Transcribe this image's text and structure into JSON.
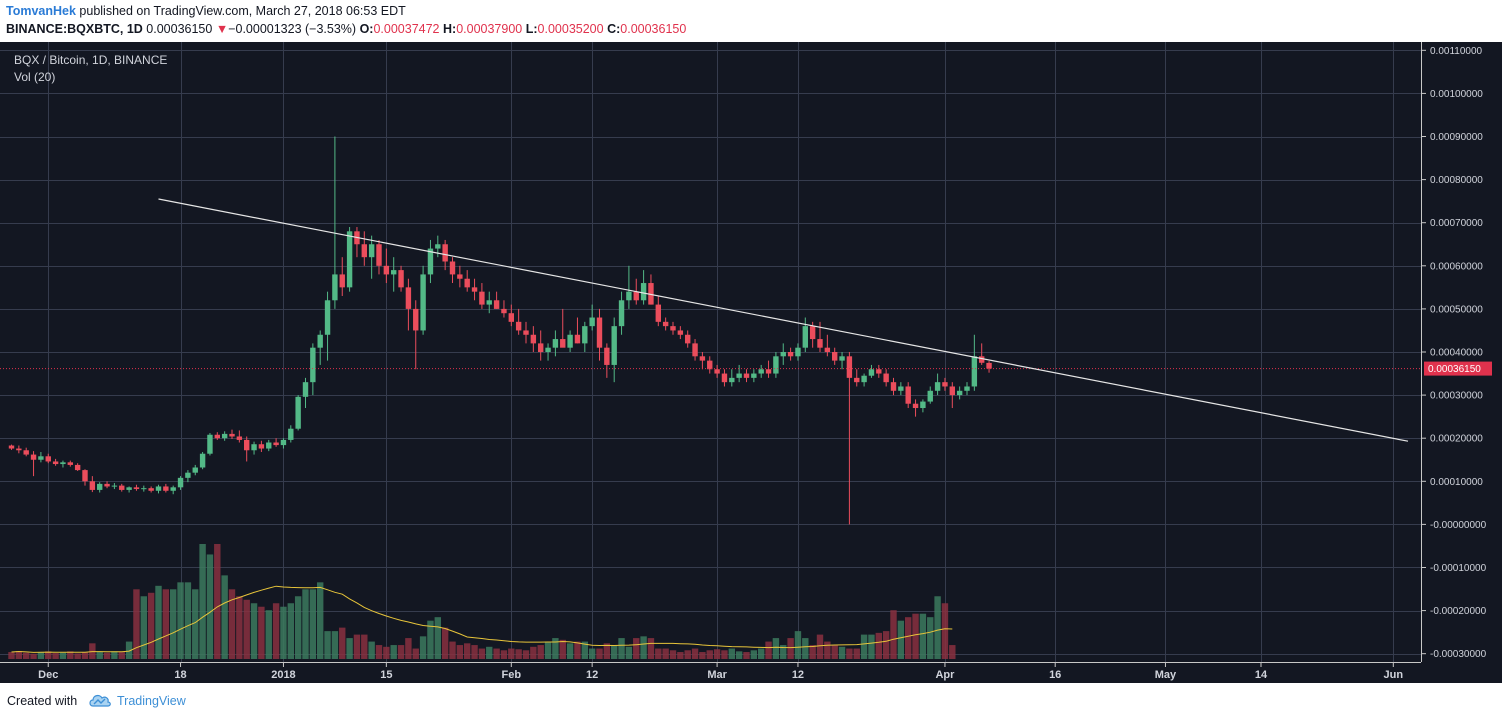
{
  "header": {
    "author": "TomvanHek",
    "published_text": " published on TradingView.com, March 27, 2018 06:53 EDT",
    "symbol": "BINANCE:BQXBTC, 1D",
    "last": "0.00036150",
    "arrow": "▼",
    "change": "−0.00001323 (−3.53%)",
    "o_label": "O:",
    "o_value": "0.00037472",
    "h_label": "H:",
    "h_value": "0.00037900",
    "l_label": "L:",
    "l_value": "0.00035200",
    "c_label": "C:",
    "c_value": "0.00036150"
  },
  "legend": {
    "title": "BQX / Bitcoin, 1D, BINANCE",
    "volume": "Vol (20)"
  },
  "footer": {
    "created_with": "Created with",
    "brand": "TradingView"
  },
  "colors": {
    "background": "#131722",
    "grid": "#363c4e",
    "up": "#53b987",
    "down": "#eb4d5c",
    "vol_up": "#3c7a5e",
    "vol_down": "#8a3040",
    "ma": "#e8c53a",
    "trendline": "#e6e6e6",
    "price_line": "#e0324d"
  },
  "chart_data": {
    "type": "candlestick",
    "title": "BQX / Bitcoin, 1D, BINANCE",
    "x_ticks": [
      "Dec",
      "18",
      "2018",
      "15",
      "Feb",
      "12",
      "Mar",
      "12",
      "Apr",
      "16",
      "May",
      "14",
      "Jun"
    ],
    "y_ticks": [
      "0.00110000",
      "0.00100000",
      "0.00090000",
      "0.00080000",
      "0.00070000",
      "0.00060000",
      "0.00050000",
      "0.00040000",
      "0.00030000",
      "0.00020000",
      "0.00010000",
      "-0.00000000",
      "-0.00010000",
      "-0.00020000",
      "-0.00030000"
    ],
    "ylim": [
      -0.00031,
      0.00111
    ],
    "start_date": "2017-11-25",
    "last_price": 0.0003615,
    "last_price_label": "0.00036150",
    "candles": [
      [
        0.000183,
        0.000185,
        0.000173,
        0.000176
      ],
      [
        0.000176,
        0.000183,
        0.000165,
        0.000172
      ],
      [
        0.000172,
        0.000178,
        0.000158,
        0.000162
      ],
      [
        0.000162,
        0.00017,
        0.000112,
        0.00015
      ],
      [
        0.00015,
        0.000168,
        0.000144,
        0.000158
      ],
      [
        0.000158,
        0.000164,
        0.000142,
        0.000146
      ],
      [
        0.000146,
        0.000152,
        0.000136,
        0.00014
      ],
      [
        0.00014,
        0.000148,
        0.000132,
        0.000144
      ],
      [
        0.000144,
        0.000148,
        0.000134,
        0.000138
      ],
      [
        0.000138,
        0.000142,
        0.000124,
        0.000126
      ],
      [
        0.000126,
        0.000128,
        9e-05,
        0.0001
      ],
      [
        0.0001,
        0.000112,
        7.5e-05,
        8e-05
      ],
      [
        8e-05,
        9.8e-05,
        7.4e-05,
        9.4e-05
      ],
      [
        9.4e-05,
        0.0001,
        8.4e-05,
        8.8e-05
      ],
      [
        8.8e-05,
        9.6e-05,
        8.2e-05,
        9e-05
      ],
      [
        9e-05,
        9.4e-05,
        7.6e-05,
        8e-05
      ],
      [
        8e-05,
        8.8e-05,
        7.4e-05,
        8.6e-05
      ],
      [
        8.6e-05,
        9.2e-05,
        7.8e-05,
        8.2e-05
      ],
      [
        8.2e-05,
        9e-05,
        7.6e-05,
        8.4e-05
      ],
      [
        8.4e-05,
        8.8e-05,
        7.4e-05,
        7.8e-05
      ],
      [
        7.8e-05,
        9.2e-05,
        7.2e-05,
        8.8e-05
      ],
      [
        8.8e-05,
        9.4e-05,
        7.4e-05,
        7.8e-05
      ],
      [
        7.8e-05,
        9e-05,
        7e-05,
        8.6e-05
      ],
      [
        8.6e-05,
        0.000112,
        8e-05,
        0.000108
      ],
      [
        0.000108,
        0.000126,
        9.8e-05,
        0.00012
      ],
      [
        0.00012,
        0.000138,
        0.000114,
        0.000132
      ],
      [
        0.000132,
        0.000168,
        0.000128,
        0.000164
      ],
      [
        0.000164,
        0.000212,
        0.00016,
        0.000208
      ],
      [
        0.000208,
        0.000214,
        0.000196,
        0.0002
      ],
      [
        0.0002,
        0.000216,
        0.000194,
        0.00021
      ],
      [
        0.00021,
        0.00022,
        0.000198,
        0.000204
      ],
      [
        0.000204,
        0.000218,
        0.00019,
        0.000196
      ],
      [
        0.000196,
        0.000204,
        0.000146,
        0.000172
      ],
      [
        0.000172,
        0.000192,
        0.000162,
        0.000186
      ],
      [
        0.000186,
        0.000194,
        0.000168,
        0.000176
      ],
      [
        0.000176,
        0.000196,
        0.00017,
        0.00019
      ],
      [
        0.00019,
        0.0002,
        0.00018,
        0.000184
      ],
      [
        0.000184,
        0.0002,
        0.000176,
        0.000196
      ],
      [
        0.000196,
        0.00023,
        0.00019,
        0.000222
      ],
      [
        0.000222,
        0.0003,
        0.000218,
        0.000296
      ],
      [
        0.000296,
        0.00034,
        0.00027,
        0.00033
      ],
      [
        0.00033,
        0.00042,
        0.0003,
        0.00041
      ],
      [
        0.00041,
        0.00045,
        0.00037,
        0.00044
      ],
      [
        0.00044,
        0.00054,
        0.00038,
        0.00052
      ],
      [
        0.00052,
        0.0009,
        0.0005,
        0.00058
      ],
      [
        0.00058,
        0.00062,
        0.00053,
        0.00055
      ],
      [
        0.00055,
        0.00069,
        0.00054,
        0.00068
      ],
      [
        0.00068,
        0.00069,
        0.00062,
        0.00065
      ],
      [
        0.00065,
        0.00068,
        0.0006,
        0.00062
      ],
      [
        0.00062,
        0.00067,
        0.00057,
        0.00065
      ],
      [
        0.00065,
        0.00066,
        0.00058,
        0.0006
      ],
      [
        0.0006,
        0.00064,
        0.00056,
        0.00058
      ],
      [
        0.00058,
        0.00062,
        0.00054,
        0.00059
      ],
      [
        0.00059,
        0.0006,
        0.00054,
        0.00055
      ],
      [
        0.00055,
        0.00057,
        0.00045,
        0.0005
      ],
      [
        0.0005,
        0.00052,
        0.00036,
        0.00045
      ],
      [
        0.00045,
        0.0006,
        0.00044,
        0.00058
      ],
      [
        0.00058,
        0.00066,
        0.00056,
        0.00064
      ],
      [
        0.00064,
        0.00067,
        0.00062,
        0.00065
      ],
      [
        0.00065,
        0.00066,
        0.00059,
        0.00061
      ],
      [
        0.00061,
        0.00062,
        0.00056,
        0.00058
      ],
      [
        0.00058,
        0.0006,
        0.00055,
        0.00057
      ],
      [
        0.00057,
        0.00059,
        0.00054,
        0.00055
      ],
      [
        0.00055,
        0.00057,
        0.00052,
        0.00054
      ],
      [
        0.00054,
        0.00056,
        0.0005,
        0.00051
      ],
      [
        0.00051,
        0.00054,
        0.00049,
        0.00052
      ],
      [
        0.00052,
        0.00054,
        0.0005,
        0.0005
      ],
      [
        0.0005,
        0.00052,
        0.00048,
        0.00049
      ],
      [
        0.00049,
        0.00051,
        0.00046,
        0.00047
      ],
      [
        0.00047,
        0.0005,
        0.00044,
        0.00045
      ],
      [
        0.00045,
        0.00047,
        0.00042,
        0.00044
      ],
      [
        0.00044,
        0.00046,
        0.0004,
        0.00042
      ],
      [
        0.00042,
        0.00045,
        0.00038,
        0.0004
      ],
      [
        0.0004,
        0.00042,
        0.00038,
        0.00041
      ],
      [
        0.00041,
        0.00045,
        0.00039,
        0.00043
      ],
      [
        0.00043,
        0.0005,
        0.00042,
        0.00041
      ],
      [
        0.00041,
        0.00045,
        0.0004,
        0.00044
      ],
      [
        0.00044,
        0.00048,
        0.00042,
        0.00042
      ],
      [
        0.00042,
        0.00047,
        0.0004,
        0.00046
      ],
      [
        0.00046,
        0.00051,
        0.00045,
        0.00048
      ],
      [
        0.00048,
        0.0005,
        0.00038,
        0.00041
      ],
      [
        0.00041,
        0.00042,
        0.00034,
        0.00037
      ],
      [
        0.00037,
        0.00048,
        0.00033,
        0.00046
      ],
      [
        0.00046,
        0.00054,
        0.00044,
        0.00052
      ],
      [
        0.00052,
        0.0006,
        0.0005,
        0.00054
      ],
      [
        0.00054,
        0.00057,
        0.00051,
        0.00052
      ],
      [
        0.00052,
        0.00059,
        0.00051,
        0.00056
      ],
      [
        0.00056,
        0.00058,
        0.00051,
        0.00051
      ],
      [
        0.00051,
        0.00053,
        0.00046,
        0.00047
      ],
      [
        0.00047,
        0.00048,
        0.00045,
        0.00046
      ],
      [
        0.00046,
        0.00047,
        0.00044,
        0.00045
      ],
      [
        0.00045,
        0.00046,
        0.00043,
        0.00044
      ],
      [
        0.00044,
        0.00045,
        0.00041,
        0.00042
      ],
      [
        0.00042,
        0.00043,
        0.00038,
        0.00039
      ],
      [
        0.00039,
        0.0004,
        0.00036,
        0.00038
      ],
      [
        0.00038,
        0.00039,
        0.00035,
        0.00036
      ],
      [
        0.00036,
        0.00037,
        0.00034,
        0.00035
      ],
      [
        0.00035,
        0.00036,
        0.00032,
        0.00033
      ],
      [
        0.00033,
        0.00036,
        0.00032,
        0.00034
      ],
      [
        0.00034,
        0.00037,
        0.00033,
        0.00035
      ],
      [
        0.00035,
        0.00036,
        0.00033,
        0.00034
      ],
      [
        0.00034,
        0.00036,
        0.00033,
        0.00035
      ],
      [
        0.00035,
        0.00037,
        0.00034,
        0.00036
      ],
      [
        0.00036,
        0.00038,
        0.00034,
        0.00035
      ],
      [
        0.00035,
        0.0004,
        0.00034,
        0.00039
      ],
      [
        0.00039,
        0.00042,
        0.00037,
        0.0004
      ],
      [
        0.0004,
        0.00041,
        0.00038,
        0.00039
      ],
      [
        0.00039,
        0.00042,
        0.00038,
        0.00041
      ],
      [
        0.00041,
        0.00048,
        0.0004,
        0.00046
      ],
      [
        0.00046,
        0.00047,
        0.00041,
        0.00043
      ],
      [
        0.00043,
        0.00047,
        0.0004,
        0.00041
      ],
      [
        0.00041,
        0.00044,
        0.00039,
        0.0004
      ],
      [
        0.0004,
        0.00041,
        0.00037,
        0.00038
      ],
      [
        0.00038,
        0.0004,
        0.00036,
        0.00039
      ],
      [
        0.00039,
        0.0004,
        -0.0,
        0.00034
      ],
      [
        0.00034,
        0.00036,
        0.00032,
        0.00033
      ],
      [
        0.00033,
        0.00035,
        0.00032,
        0.000345
      ],
      [
        0.000345,
        0.00037,
        0.00034,
        0.00036
      ],
      [
        0.00036,
        0.00037,
        0.00034,
        0.00035
      ],
      [
        0.00035,
        0.00036,
        0.00032,
        0.00033
      ],
      [
        0.00033,
        0.00034,
        0.0003,
        0.00031
      ],
      [
        0.00031,
        0.00033,
        0.0003,
        0.00032
      ],
      [
        0.00032,
        0.00033,
        0.00027,
        0.00028
      ],
      [
        0.00028,
        0.00029,
        0.00025,
        0.00027
      ],
      [
        0.00027,
        0.00029,
        0.00026,
        0.000285
      ],
      [
        0.000285,
        0.00032,
        0.00028,
        0.00031
      ],
      [
        0.00031,
        0.00035,
        0.0003,
        0.00033
      ],
      [
        0.00033,
        0.00034,
        0.00031,
        0.00032
      ],
      [
        0.00032,
        0.00033,
        0.00027,
        0.0003
      ],
      [
        0.0003,
        0.00032,
        0.00029,
        0.00031
      ],
      [
        0.00031,
        0.00033,
        0.0003,
        0.00032
      ],
      [
        0.00032,
        0.00044,
        0.00031,
        0.00039
      ],
      [
        0.00039,
        0.00042,
        0.00037,
        0.000375
      ],
      [
        0.00037472,
        0.000379,
        0.000352,
        0.0003615
      ]
    ],
    "volume": [
      0.02,
      0.023,
      0.018,
      0.015,
      0.02,
      0.022,
      0.017,
      0.018,
      0.022,
      0.016,
      0.02,
      0.045,
      0.02,
      0.018,
      0.022,
      0.02,
      0.05,
      0.2,
      0.18,
      0.19,
      0.21,
      0.2,
      0.2,
      0.22,
      0.22,
      0.2,
      0.33,
      0.3,
      0.33,
      0.24,
      0.2,
      0.18,
      0.17,
      0.16,
      0.15,
      0.14,
      0.16,
      0.15,
      0.16,
      0.18,
      0.2,
      0.2,
      0.22,
      0.08,
      0.08,
      0.09,
      0.06,
      0.07,
      0.07,
      0.05,
      0.04,
      0.035,
      0.04,
      0.04,
      0.06,
      0.03,
      0.065,
      0.11,
      0.12,
      0.09,
      0.05,
      0.04,
      0.045,
      0.04,
      0.03,
      0.035,
      0.03,
      0.025,
      0.03,
      0.028,
      0.025,
      0.035,
      0.04,
      0.05,
      0.06,
      0.055,
      0.045,
      0.05,
      0.05,
      0.03,
      0.03,
      0.045,
      0.04,
      0.06,
      0.035,
      0.06,
      0.065,
      0.06,
      0.03,
      0.03,
      0.025,
      0.02,
      0.025,
      0.03,
      0.02,
      0.025,
      0.028,
      0.025,
      0.03,
      0.022,
      0.02,
      0.025,
      0.03,
      0.05,
      0.06,
      0.04,
      0.06,
      0.08,
      0.06,
      0.04,
      0.07,
      0.05,
      0.04,
      0.035,
      0.03,
      0.03,
      0.07,
      0.07,
      0.075,
      0.08,
      0.14,
      0.11,
      0.12,
      0.13,
      0.13,
      0.12,
      0.18,
      0.16,
      0.04
    ],
    "volume_max": 0.33,
    "trendline": [
      [
        "2017-12-15",
        0.000755
      ],
      [
        "2018-06-03",
        0.000193
      ]
    ]
  }
}
